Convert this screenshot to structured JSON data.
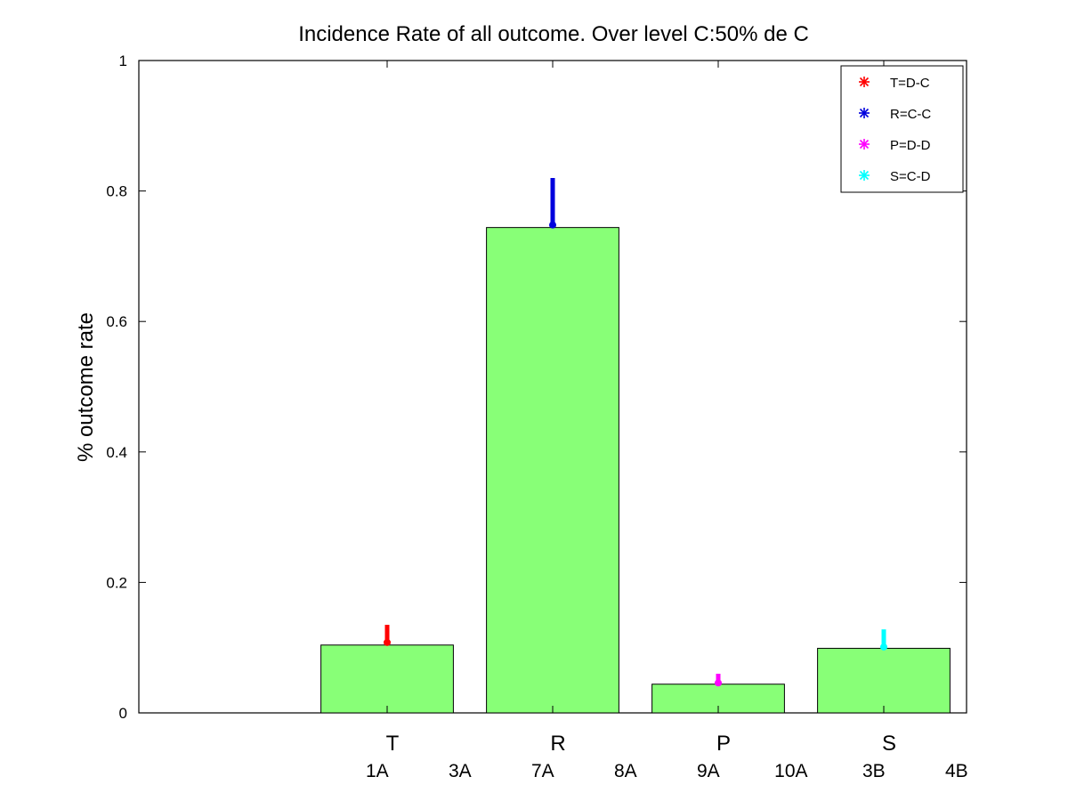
{
  "chart_data": {
    "type": "bar",
    "title": "Incidence Rate of all outcome. Over level C:50% de C",
    "xlabel": "",
    "ylabel": "% outcome rate",
    "ylim": [
      0,
      1
    ],
    "xlim": [
      -0.5,
      4.5
    ],
    "yticks": [
      "0",
      "0.2",
      "0.4",
      "0.6",
      "0.8",
      "1"
    ],
    "categories": [
      "T",
      "R",
      "P",
      "S"
    ],
    "values": [
      0.104,
      0.744,
      0.044,
      0.099
    ],
    "bar_color": "#88ff77",
    "error_bars": [
      {
        "category": "T",
        "value": 0.108,
        "upper": 0.135,
        "color": "#ff0000"
      },
      {
        "category": "R",
        "value": 0.748,
        "upper": 0.82,
        "color": "#0000dd"
      },
      {
        "category": "P",
        "value": 0.046,
        "upper": 0.06,
        "color": "#ff00ff"
      },
      {
        "category": "S",
        "value": 0.101,
        "upper": 0.128,
        "color": "#00ffff"
      }
    ],
    "sub_labels": [
      "1A",
      "3A",
      "7A",
      "8A",
      "9A",
      "10A",
      "3B",
      "4B"
    ],
    "legend": {
      "placement": "top-right",
      "entries": [
        {
          "label": "T=D-C",
          "color": "#ff0000"
        },
        {
          "label": "R=C-C",
          "color": "#0000dd"
        },
        {
          "label": "P=D-D",
          "color": "#ff00ff"
        },
        {
          "label": "S=C-D",
          "color": "#00ffff"
        }
      ]
    },
    "grid": false
  }
}
